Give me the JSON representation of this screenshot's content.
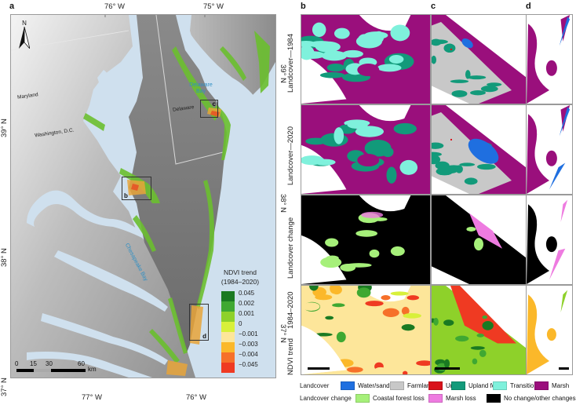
{
  "panels": {
    "a": {
      "letter": "a"
    },
    "b": {
      "letter": "b"
    },
    "c": {
      "letter": "c"
    },
    "d": {
      "letter": "d"
    }
  },
  "main_map": {
    "top_lon_ticks": [
      "76° W",
      "75° W"
    ],
    "bottom_lon_ticks": [
      "77° W",
      "76° W"
    ],
    "left_lat_ticks": [
      "39° N",
      "38° N",
      "37° N"
    ],
    "right_lat_ticks": [
      "39° N",
      "38° N",
      "37° N"
    ],
    "north_arrow": "N",
    "places": {
      "maryland": "Maryland",
      "washington": "Washington, D.C.",
      "delaware": "Delaware"
    },
    "water_bodies": {
      "delaware_bay_line1": "Delaware",
      "delaware_bay_line2": "Bay",
      "chesapeake_bay": "Chesapeake Bay"
    },
    "inset_labels": [
      "b",
      "c",
      "d"
    ],
    "scale_bar": {
      "ticks": [
        "0",
        "15",
        "30",
        "60"
      ],
      "unit": "km"
    },
    "ndvi_legend": {
      "title_line1": "NDVI trend",
      "title_line2": "(1984–2020)",
      "classes": [
        {
          "label": "0.045",
          "color": "#1a7a22"
        },
        {
          "label": "0.002",
          "color": "#3fa832"
        },
        {
          "label": "0.001",
          "color": "#8ed12a"
        },
        {
          "label": "0",
          "color": "#d8f03a"
        },
        {
          "label": "−0.001",
          "color": "#fde69a"
        },
        {
          "label": "−0.003",
          "color": "#fbb82a"
        },
        {
          "label": "−0.004",
          "color": "#f6702a"
        },
        {
          "label": "−0.045",
          "color": "#ef3a22"
        }
      ]
    }
  },
  "grid": {
    "rows": [
      {
        "label": "Landcover—1984"
      },
      {
        "label": "Landcover—2020"
      },
      {
        "label": "Landcover change"
      },
      {
        "label_line1": "NDVI trend",
        "label_line2": "1984–2020"
      }
    ]
  },
  "bottom_legend": {
    "landcover": {
      "title": "Landcover",
      "items": [
        {
          "label": "Water/sand",
          "color": "#1f6fe0"
        },
        {
          "label": "Farmland",
          "color": "#c8c8c8"
        },
        {
          "label": "Urban",
          "color": "#d9121b"
        },
        {
          "label": "Upland forest",
          "color": "#129a7a"
        },
        {
          "label": "Transition",
          "color": "#7ff1dc"
        },
        {
          "label": "Marsh",
          "color": "#9a0f7c"
        }
      ]
    },
    "landcover_change": {
      "title": "Landcover change",
      "items": [
        {
          "label": "Coastal forest loss",
          "color": "#a6f07a"
        },
        {
          "label": "Marsh loss",
          "color": "#ee7be0"
        },
        {
          "label": "No change/other changes",
          "color": "#000000"
        }
      ]
    }
  }
}
